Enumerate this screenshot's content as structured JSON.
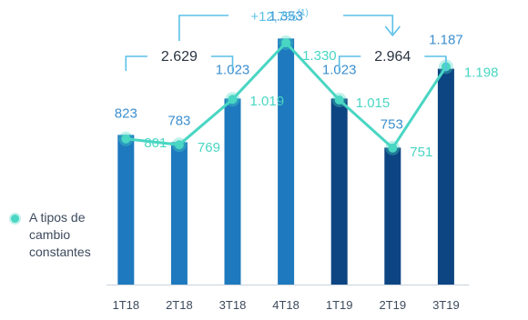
{
  "chart_data": {
    "type": "bar",
    "categories": [
      "1T18",
      "2T18",
      "3T18",
      "4T18",
      "1T19",
      "2T19",
      "3T19"
    ],
    "series": [
      {
        "values": [
          823,
          783,
          1023,
          1353,
          1023,
          753,
          1187
        ]
      },
      {
        "name": "A tipos de cambio constantes",
        "type": "line",
        "values": [
          801,
          769,
          1019,
          1330,
          1015,
          751,
          1198
        ]
      }
    ],
    "bar_colors": [
      "#1e79be",
      "#1e79be",
      "#1e79be",
      "#1e79be",
      "#0d4582",
      "#0d4582",
      "#0d4582"
    ],
    "line_color": "#49d6c3",
    "value_label_color": "#3c8fcf",
    "ylim": [
      0,
      1500
    ],
    "totals": [
      {
        "label": "2.629",
        "span": [
          "1T18",
          "3T18"
        ]
      },
      {
        "label": "2.964",
        "span": [
          "1T19",
          "3T19"
        ]
      }
    ],
    "growth": {
      "label": "+12,7%",
      "superscript": "(1)"
    },
    "bar_labels": [
      "823",
      "783",
      "1.023",
      "1.353",
      "1.023",
      "753",
      "1.187"
    ],
    "line_labels": [
      "801",
      "769",
      "1.019",
      "1.330",
      "1.015",
      "751",
      "1.198"
    ]
  },
  "legend": {
    "label": "A tipos de cambio constantes"
  }
}
